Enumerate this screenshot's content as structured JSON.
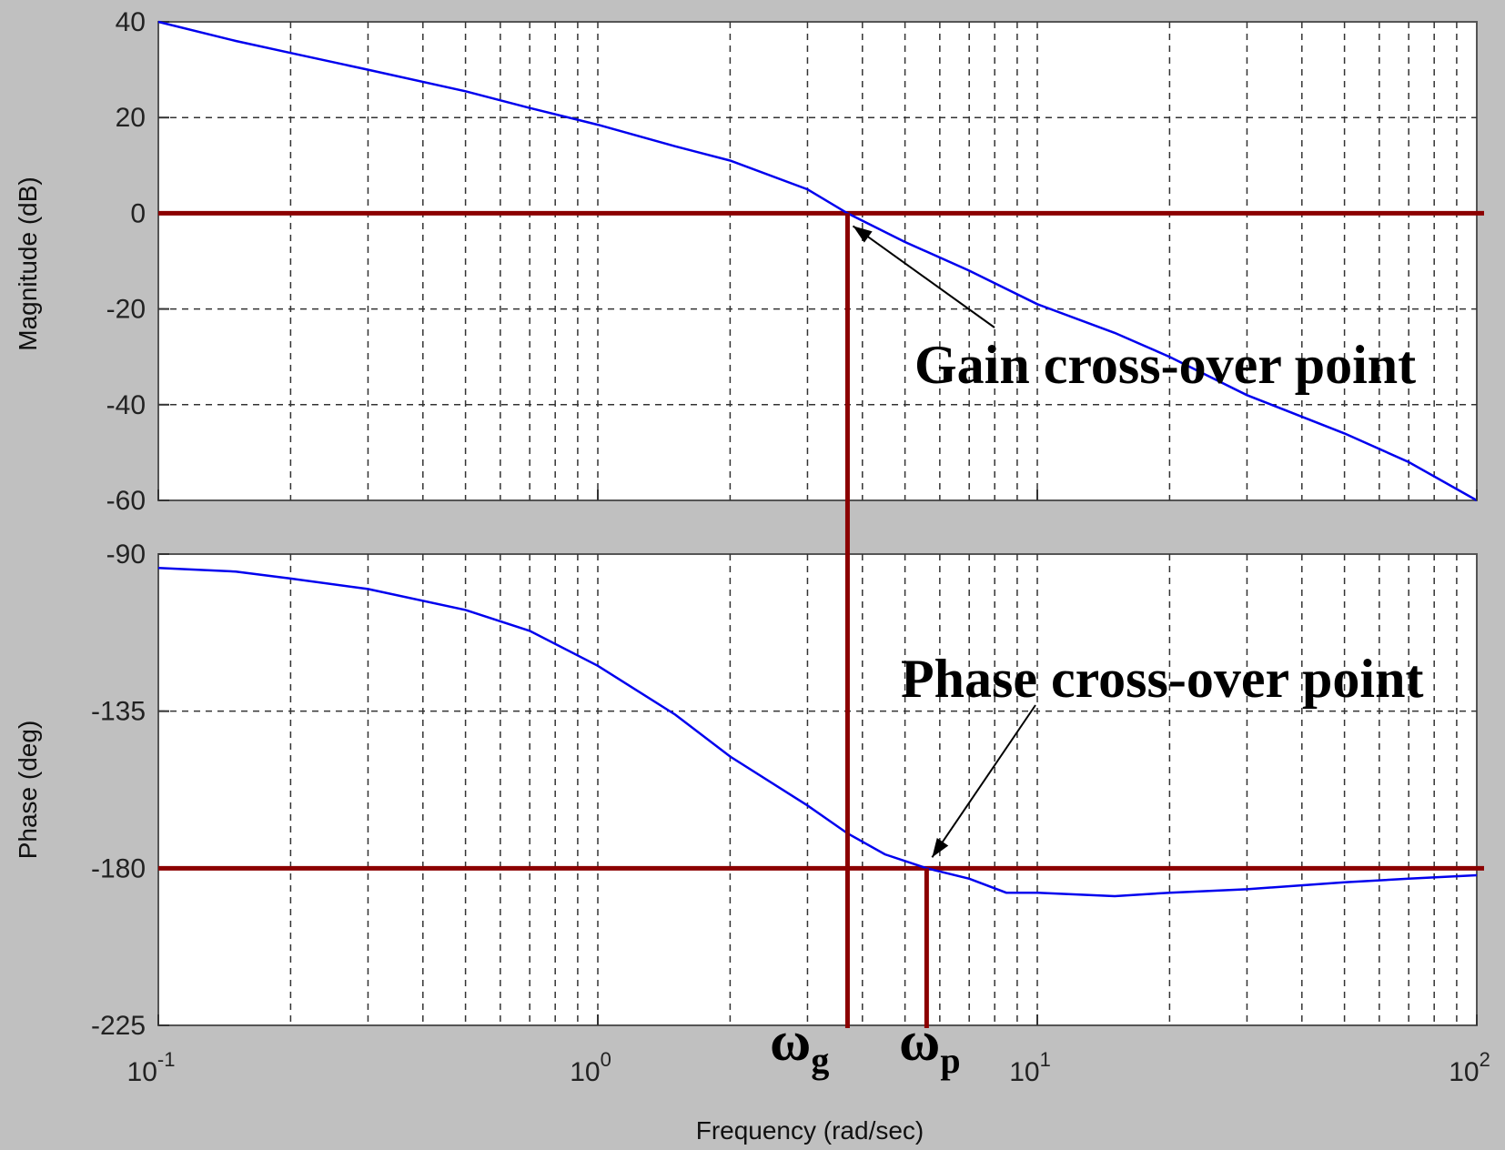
{
  "chart_data": {
    "type": "line",
    "title": "",
    "xlabel": "Frequency (rad/sec)",
    "x_scale": "log",
    "xlim": [
      0.1,
      100
    ],
    "x_tick_labels": [
      {
        "base": "10",
        "exp": "-1",
        "value": 0.1
      },
      {
        "base": "10",
        "exp": "0",
        "value": 1
      },
      {
        "base": "10",
        "exp": "1",
        "value": 10
      },
      {
        "base": "10",
        "exp": "2",
        "value": 100
      }
    ],
    "grid": true,
    "panels": [
      {
        "ylabel": "Magnitude (dB)",
        "ylim": [
          -60,
          40
        ],
        "yticks": [
          "40",
          "20",
          "0",
          "-20",
          "-40",
          "-60"
        ],
        "ytick_values": [
          40,
          20,
          0,
          -20,
          -40,
          -60
        ],
        "series": [
          {
            "color": "#0000ee",
            "x": [
              0.1,
              0.15,
              0.2,
              0.3,
              0.5,
              0.7,
              1,
              1.5,
              2,
              3,
              3.7,
              5,
              7,
              10,
              15,
              20,
              30,
              50,
              70,
              100
            ],
            "y": [
              40,
              36,
              33.5,
              30,
              25.5,
              22,
              18.5,
              14,
              11,
              5,
              0,
              -6,
              -12,
              -19,
              -25,
              -30,
              -38,
              -46,
              -52,
              -60
            ]
          }
        ],
        "reference_lines": [
          {
            "axis": "y",
            "value": 0,
            "color": "#8b0000"
          },
          {
            "axis": "x",
            "value": 3.7,
            "color": "#8b0000"
          }
        ]
      },
      {
        "ylabel": "Phase (deg)",
        "ylim": [
          -225,
          -90
        ],
        "yticks": [
          "-90",
          "-135",
          "-180",
          "-225"
        ],
        "ytick_values": [
          -90,
          -135,
          -180,
          -225
        ],
        "series": [
          {
            "color": "#0000ee",
            "x": [
              0.1,
              0.15,
              0.2,
              0.3,
              0.5,
              0.7,
              1,
              1.5,
              2,
              3,
              3.7,
              4.5,
              5.6,
              7,
              8.5,
              10,
              15,
              20,
              30,
              50,
              70,
              100
            ],
            "y": [
              -94,
              -95,
              -97,
              -100,
              -106,
              -112,
              -122,
              -136,
              -148,
              -162,
              -170,
              -176,
              -180,
              -183,
              -187,
              -187,
              -188,
              -187,
              -186,
              -184,
              -183,
              -182
            ]
          }
        ],
        "reference_lines": [
          {
            "axis": "y",
            "value": -180,
            "color": "#8b0000"
          },
          {
            "axis": "x",
            "value": 3.7,
            "color": "#8b0000"
          },
          {
            "axis": "x",
            "value": 5.6,
            "color": "#8b0000"
          }
        ]
      }
    ],
    "annotations": [
      {
        "id": "gain",
        "text": "Gain cross-over point",
        "x": 3.7,
        "y": 0,
        "panel": 0
      },
      {
        "id": "phase",
        "text": "Phase cross-over point",
        "x": 5.6,
        "y": -180,
        "panel": 1
      }
    ],
    "markers": [
      {
        "id": "wg",
        "symbol": "ω",
        "subscript": "g",
        "x": 3.7
      },
      {
        "id": "wp",
        "symbol": "ω",
        "subscript": "p",
        "x": 5.6
      }
    ]
  }
}
